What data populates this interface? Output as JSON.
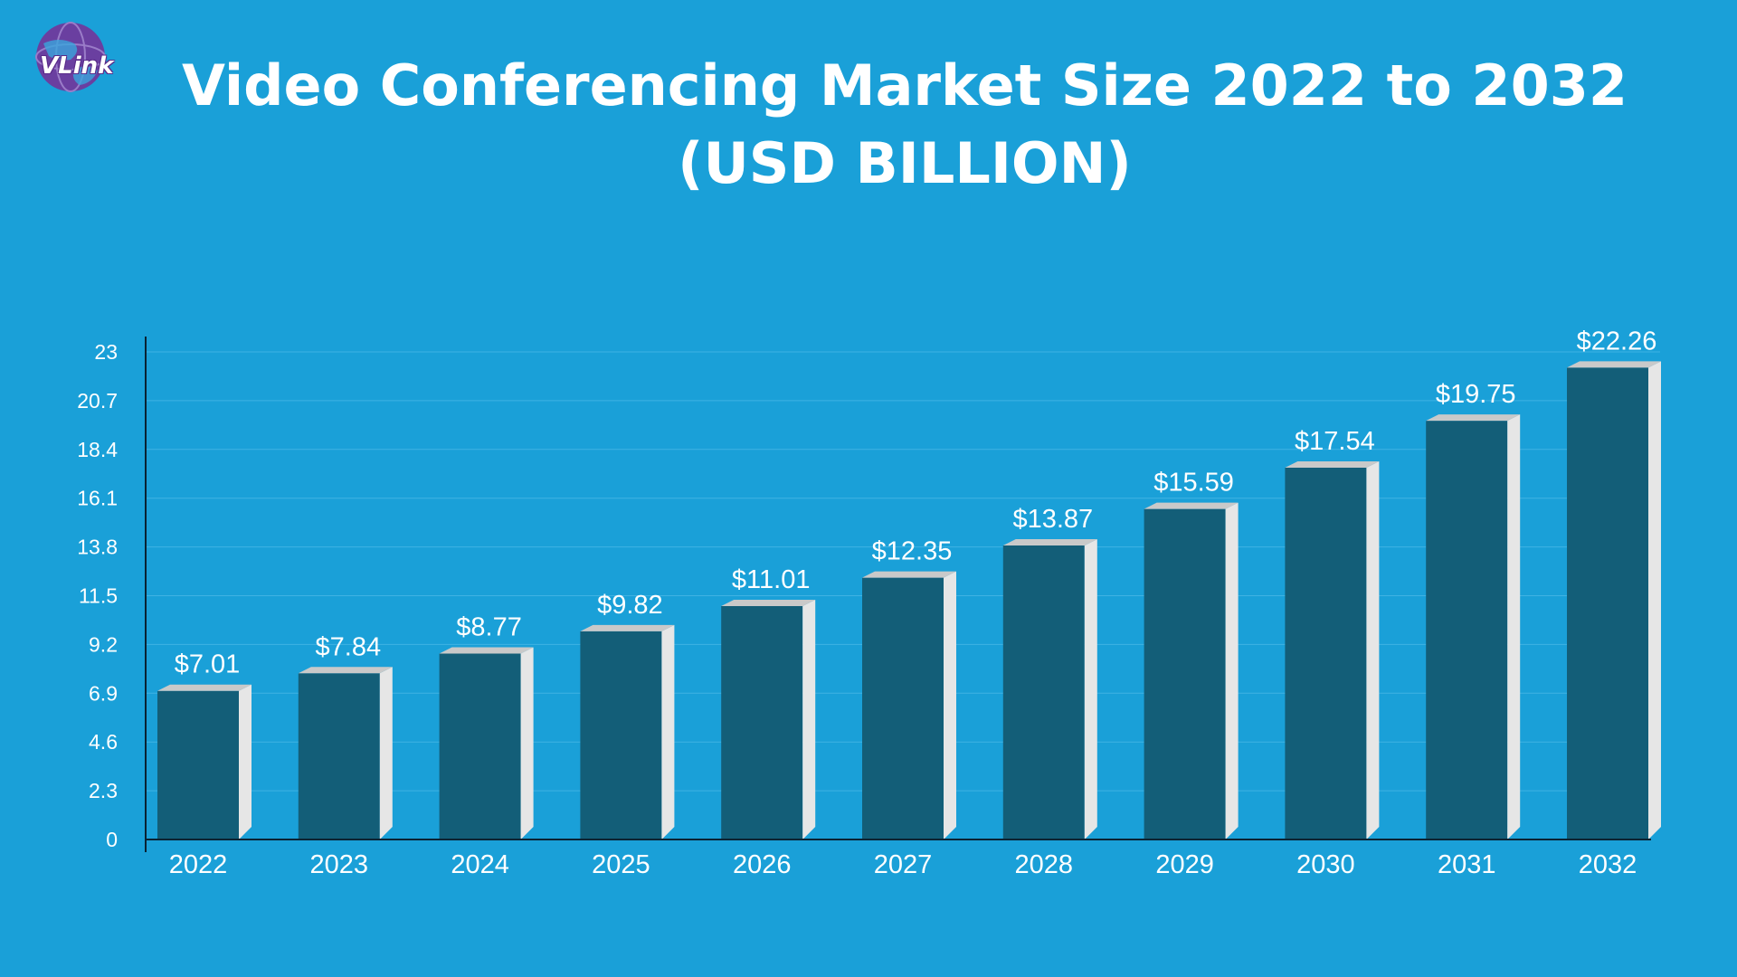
{
  "brand": {
    "logo_text": "VLink",
    "globe_color": "#6a3fa0"
  },
  "colors": {
    "background": "#1aa0d8",
    "bar_front": "#135e78",
    "bar_side": "#e6e6e6",
    "bar_top": "#c9c9c9",
    "text": "#ffffff"
  },
  "chart_data": {
    "type": "bar",
    "title": "Video Conferencing Market Size 2022 to 2032 (USD BILLION)",
    "title_lines": [
      "Video Conferencing Market Size 2022 to 2032",
      "(USD BILLION)"
    ],
    "categories": [
      "2022",
      "2023",
      "2024",
      "2025",
      "2026",
      "2027",
      "2028",
      "2029",
      "2030",
      "2031",
      "2032"
    ],
    "values": [
      7.01,
      7.84,
      8.77,
      9.82,
      11.01,
      12.35,
      13.87,
      15.59,
      17.54,
      19.75,
      22.26
    ],
    "value_labels": [
      "$7.01",
      "$7.84",
      "$8.77",
      "$9.82",
      "$11.01",
      "$12.35",
      "$13.87",
      "$15.59",
      "$17.54",
      "$19.75",
      "$22.26"
    ],
    "yticks": [
      "0",
      "2.3",
      "4.6",
      "6.9",
      "9.2",
      "11.5",
      "13.8",
      "16.1",
      "18.4",
      "20.7",
      "23"
    ],
    "ylim": [
      0,
      23
    ],
    "xlabel": "",
    "ylabel": "",
    "grid": true,
    "legend": "none"
  }
}
